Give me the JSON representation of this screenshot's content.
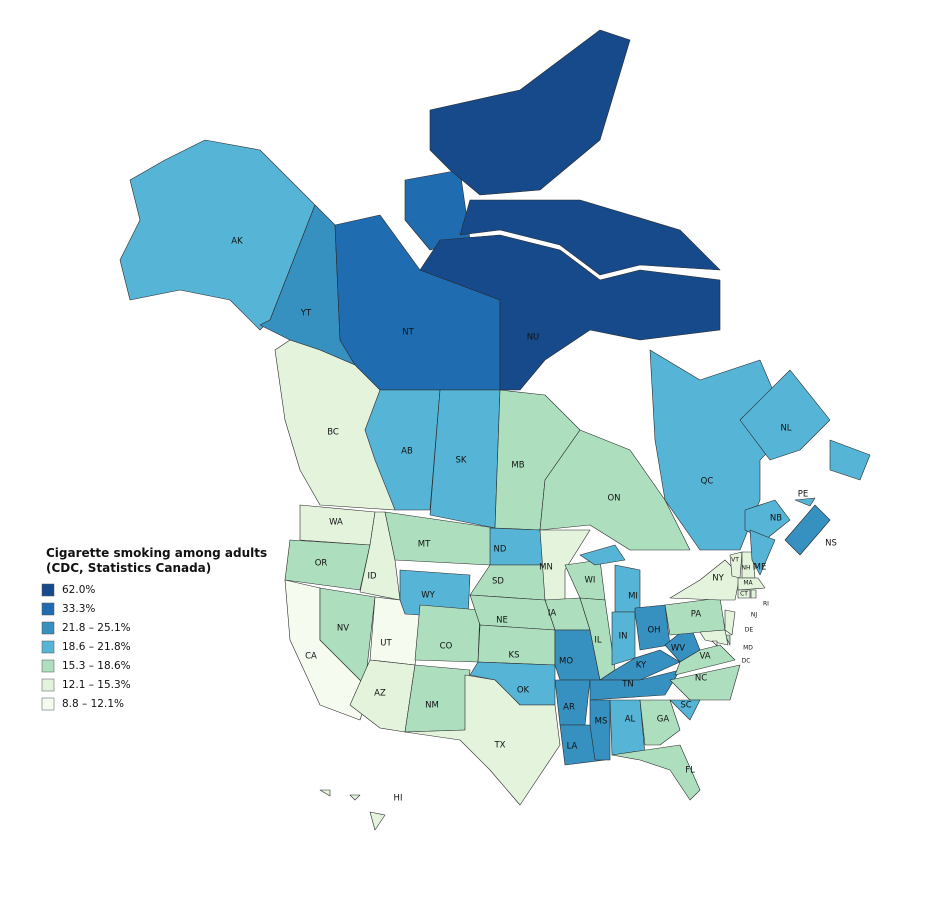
{
  "legend": {
    "title": [
      "Cigarette smoking among adults",
      "(CDC, Statistics Canada)"
    ],
    "items": [
      {
        "label": "62.0%",
        "color": "#174a8b"
      },
      {
        "label": "33.3%",
        "color": "#1f6db0"
      },
      {
        "label": "21.8 – 25.1%",
        "color": "#3690c0"
      },
      {
        "label": "18.6 – 21.8%",
        "color": "#56b4d6"
      },
      {
        "label": "15.3 – 18.6%",
        "color": "#addfbf"
      },
      {
        "label": "12.1 – 15.3%",
        "color": "#e3f3dc"
      },
      {
        "label": "8.8 – 12.1%",
        "color": "#f5fbef"
      }
    ]
  },
  "regions": [
    {
      "label": "AK",
      "color": "#56b4d6"
    },
    {
      "label": "YT",
      "color": "#3690c0"
    },
    {
      "label": "NT",
      "color": "#1f6db0"
    },
    {
      "label": "NU",
      "color": "#174a8b"
    },
    {
      "label": "BC",
      "color": "#e3f3dc"
    },
    {
      "label": "AB",
      "color": "#56b4d6"
    },
    {
      "label": "SK",
      "color": "#56b4d6"
    },
    {
      "label": "MB",
      "color": "#addfbf"
    },
    {
      "label": "ON",
      "color": "#addfbf"
    },
    {
      "label": "QC",
      "color": "#56b4d6"
    },
    {
      "label": "NL",
      "color": "#56b4d6"
    },
    {
      "label": "NB",
      "color": "#56b4d6"
    },
    {
      "label": "NS",
      "color": "#3690c0"
    },
    {
      "label": "PE",
      "color": "#56b4d6"
    },
    {
      "label": "WA",
      "color": "#e3f3dc"
    },
    {
      "label": "OR",
      "color": "#addfbf"
    },
    {
      "label": "CA",
      "color": "#f5fbef"
    },
    {
      "label": "NV",
      "color": "#addfbf"
    },
    {
      "label": "ID",
      "color": "#e3f3dc"
    },
    {
      "label": "MT",
      "color": "#addfbf"
    },
    {
      "label": "WY",
      "color": "#56b4d6"
    },
    {
      "label": "UT",
      "color": "#f5fbef"
    },
    {
      "label": "AZ",
      "color": "#e3f3dc"
    },
    {
      "label": "CO",
      "color": "#addfbf"
    },
    {
      "label": "NM",
      "color": "#addfbf"
    },
    {
      "label": "ND",
      "color": "#56b4d6"
    },
    {
      "label": "SD",
      "color": "#addfbf"
    },
    {
      "label": "NE",
      "color": "#addfbf"
    },
    {
      "label": "KS",
      "color": "#addfbf"
    },
    {
      "label": "OK",
      "color": "#56b4d6"
    },
    {
      "label": "TX",
      "color": "#e3f3dc"
    },
    {
      "label": "MN",
      "color": "#e3f3dc"
    },
    {
      "label": "IA",
      "color": "#addfbf"
    },
    {
      "label": "MO",
      "color": "#3690c0"
    },
    {
      "label": "AR",
      "color": "#3690c0"
    },
    {
      "label": "LA",
      "color": "#3690c0"
    },
    {
      "label": "WI",
      "color": "#addfbf"
    },
    {
      "label": "IL",
      "color": "#addfbf"
    },
    {
      "label": "MI",
      "color": "#56b4d6"
    },
    {
      "label": "IN",
      "color": "#56b4d6"
    },
    {
      "label": "OH",
      "color": "#3690c0"
    },
    {
      "label": "KY",
      "color": "#3690c0"
    },
    {
      "label": "TN",
      "color": "#3690c0"
    },
    {
      "label": "WV",
      "color": "#3690c0"
    },
    {
      "label": "VA",
      "color": "#addfbf"
    },
    {
      "label": "NC",
      "color": "#addfbf"
    },
    {
      "label": "SC",
      "color": "#56b4d6"
    },
    {
      "label": "MS",
      "color": "#3690c0"
    },
    {
      "label": "AL",
      "color": "#56b4d6"
    },
    {
      "label": "GA",
      "color": "#addfbf"
    },
    {
      "label": "FL",
      "color": "#addfbf"
    },
    {
      "label": "PA",
      "color": "#addfbf"
    },
    {
      "label": "NY",
      "color": "#e3f3dc"
    },
    {
      "label": "VT",
      "color": "#e3f3dc"
    },
    {
      "label": "NH",
      "color": "#e3f3dc"
    },
    {
      "label": "ME",
      "color": "#56b4d6"
    },
    {
      "label": "MA",
      "color": "#e3f3dc"
    },
    {
      "label": "CT",
      "color": "#e3f3dc"
    },
    {
      "label": "RI",
      "color": "#e3f3dc"
    },
    {
      "label": "NJ",
      "color": "#e3f3dc"
    },
    {
      "label": "DE",
      "color": "#addfbf"
    },
    {
      "label": "MD",
      "color": "#e3f3dc"
    },
    {
      "label": "DC",
      "color": "#e3f3dc"
    },
    {
      "label": "HI",
      "color": "#e3f3dc"
    }
  ]
}
